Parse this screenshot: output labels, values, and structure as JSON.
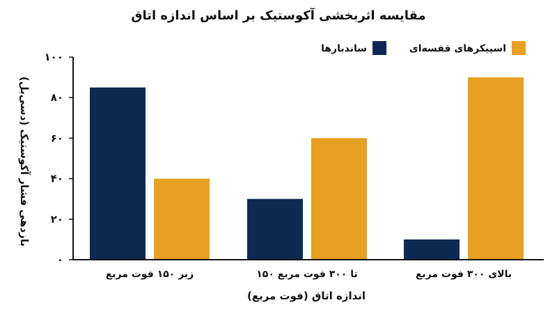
{
  "chart_data": {
    "type": "bar",
    "title": "مقایسه اثربخشی آکوستیک بر اساس اندازه اتاق",
    "xlabel": "اندازه اتاق (فوت مربع)",
    "ylabel": "بازدهی فشار آکوستیک (دسی‌بل)",
    "categories": [
      "زیر ۱۵۰ فوت مربع",
      "۱۵۰ تا ۳۰۰ فوت مربع",
      "بالای ۳۰۰ فوت مربع"
    ],
    "series": [
      {
        "name": "ساندبارها",
        "values": [
          85,
          30,
          10
        ],
        "color": "#0e2a52"
      },
      {
        "name": "اسپیکرهای قفسه‌ای",
        "values": [
          40,
          60,
          90
        ],
        "color": "#e8a023"
      }
    ],
    "ylim": [
      0,
      100
    ],
    "yticks": [
      0,
      20,
      40,
      60,
      80,
      100
    ],
    "ytick_labels": [
      "۰",
      "۲۰",
      "۴۰",
      "۶۰",
      "۸۰",
      "۱۰۰"
    ],
    "grid": false,
    "legend_position": "top-right",
    "axis_color": "#111111"
  }
}
